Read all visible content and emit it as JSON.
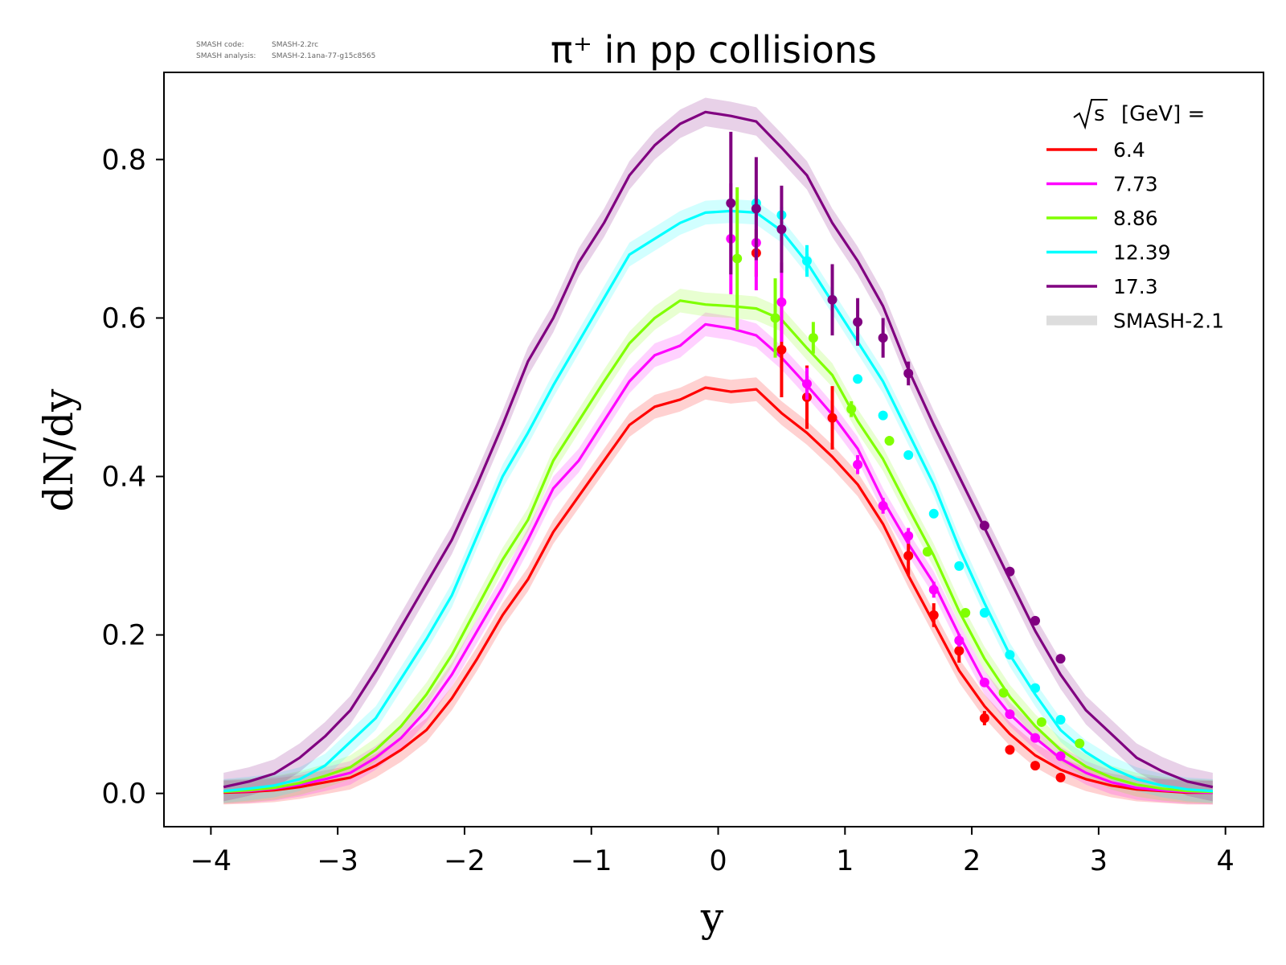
{
  "meta": {
    "code_label": "SMASH code:",
    "code_value": "SMASH-2.2rc",
    "analysis_label": "SMASH analysis:",
    "analysis_value": "SMASH-2.1ana-77-g15c8565"
  },
  "chart_data": {
    "type": "line",
    "title": "π⁺ in pp collisions",
    "xlabel": "y",
    "ylabel": "dN/dy",
    "xlim": [
      -4.37,
      4.3
    ],
    "ylim": [
      -0.042,
      0.91
    ],
    "xticks": [
      -4,
      -3,
      -2,
      -1,
      0,
      1,
      2,
      3,
      4
    ],
    "xtick_labels": [
      "−4",
      "−3",
      "−2",
      "−1",
      "0",
      "1",
      "2",
      "3",
      "4"
    ],
    "yticks": [
      0.0,
      0.2,
      0.4,
      0.6,
      0.8
    ],
    "ytick_labels": [
      "0.0",
      "0.2",
      "0.4",
      "0.6",
      "0.8"
    ],
    "grid": false,
    "legend": {
      "position": "top-right",
      "title_prefix": "√s",
      "title_suffix": "[GeV] =",
      "band_label": "SMASH-2.1",
      "band_color": "#dddddd"
    },
    "x": [
      -3.9,
      -3.7,
      -3.5,
      -3.3,
      -3.1,
      -2.9,
      -2.7,
      -2.5,
      -2.3,
      -2.1,
      -1.9,
      -1.7,
      -1.5,
      -1.3,
      -1.1,
      -0.9,
      -0.7,
      -0.5,
      -0.3,
      -0.1,
      0.1,
      0.3,
      0.5,
      0.7,
      0.9,
      1.1,
      1.3,
      1.5,
      1.7,
      1.9,
      2.1,
      2.3,
      2.5,
      2.7,
      2.9,
      3.1,
      3.3,
      3.5,
      3.7,
      3.9
    ],
    "series": [
      {
        "name": "6.4",
        "color": "#ff0000",
        "values": [
          0.001,
          0.002,
          0.004,
          0.008,
          0.014,
          0.02,
          0.035,
          0.055,
          0.08,
          0.12,
          0.17,
          0.225,
          0.27,
          0.33,
          0.375,
          0.42,
          0.465,
          0.488,
          0.497,
          0.512,
          0.507,
          0.51,
          0.48,
          0.455,
          0.425,
          0.39,
          0.34,
          0.275,
          0.215,
          0.155,
          0.11,
          0.075,
          0.048,
          0.03,
          0.018,
          0.01,
          0.005,
          0.003,
          0.001,
          0.001
        ],
        "band": 0.015,
        "points": {
          "x": [
            0.3,
            0.5,
            0.7,
            0.9,
            1.5,
            1.7,
            1.9,
            2.1,
            2.3,
            2.5,
            2.7
          ],
          "y": [
            0.682,
            0.56,
            0.5,
            0.474,
            0.3,
            0.225,
            0.18,
            0.095,
            0.055,
            0.035,
            0.02
          ],
          "err": [
            0.03,
            0.06,
            0.04,
            0.04,
            0.025,
            0.015,
            0.015,
            0.009,
            0.006,
            0.004,
            0.003
          ]
        }
      },
      {
        "name": "7.73",
        "color": "#ff00ff",
        "values": [
          0.002,
          0.003,
          0.006,
          0.011,
          0.018,
          0.026,
          0.045,
          0.07,
          0.105,
          0.15,
          0.205,
          0.26,
          0.32,
          0.385,
          0.42,
          0.47,
          0.52,
          0.553,
          0.565,
          0.592,
          0.587,
          0.578,
          0.55,
          0.515,
          0.478,
          0.435,
          0.37,
          0.315,
          0.265,
          0.2,
          0.14,
          0.1,
          0.07,
          0.044,
          0.026,
          0.014,
          0.007,
          0.004,
          0.002,
          0.001
        ],
        "band": 0.015,
        "points": {
          "x": [
            0.1,
            0.3,
            0.5,
            0.7,
            1.1,
            1.3,
            1.5,
            1.7,
            1.9,
            2.1,
            2.3,
            2.5,
            2.7
          ],
          "y": [
            0.7,
            0.695,
            0.62,
            0.517,
            0.415,
            0.363,
            0.325,
            0.257,
            0.193,
            0.14,
            0.1,
            0.07,
            0.047
          ],
          "err": [
            0.07,
            0.06,
            0.05,
            0.02,
            0.012,
            0.01,
            0.01,
            0.01,
            0.008,
            0.005,
            0.004,
            0.003,
            0.002
          ]
        }
      },
      {
        "name": "8.86",
        "color": "#80ff00",
        "values": [
          0.002,
          0.004,
          0.007,
          0.013,
          0.022,
          0.033,
          0.055,
          0.085,
          0.125,
          0.175,
          0.235,
          0.295,
          0.345,
          0.42,
          0.47,
          0.52,
          0.568,
          0.6,
          0.622,
          0.617,
          0.615,
          0.612,
          0.598,
          0.562,
          0.528,
          0.47,
          0.422,
          0.36,
          0.3,
          0.23,
          0.17,
          0.122,
          0.085,
          0.055,
          0.034,
          0.02,
          0.011,
          0.006,
          0.003,
          0.002
        ],
        "band": 0.015,
        "points": {
          "x": [
            0.15,
            0.45,
            0.75,
            1.05,
            1.35,
            1.65,
            1.95,
            2.25,
            2.55,
            2.85
          ],
          "y": [
            0.675,
            0.6,
            0.575,
            0.485,
            0.445,
            0.305,
            0.228,
            0.127,
            0.09,
            0.063
          ],
          "err": [
            0.09,
            0.05,
            0.02,
            0.01,
            0.006,
            0.005,
            0.005,
            0.004,
            0.003,
            0.002
          ]
        }
      },
      {
        "name": "12.39",
        "color": "#00ffff",
        "values": [
          0.003,
          0.006,
          0.01,
          0.018,
          0.035,
          0.065,
          0.095,
          0.145,
          0.195,
          0.25,
          0.325,
          0.4,
          0.455,
          0.515,
          0.57,
          0.625,
          0.68,
          0.7,
          0.72,
          0.733,
          0.735,
          0.733,
          0.71,
          0.67,
          0.62,
          0.57,
          0.52,
          0.455,
          0.39,
          0.31,
          0.24,
          0.175,
          0.125,
          0.08,
          0.052,
          0.032,
          0.018,
          0.01,
          0.005,
          0.003
        ],
        "band": 0.015,
        "points": {
          "x": [
            0.3,
            0.5,
            0.7,
            1.1,
            1.3,
            1.5,
            1.7,
            1.9,
            2.1,
            2.3,
            2.5,
            2.7
          ],
          "y": [
            0.745,
            0.73,
            0.672,
            0.523,
            0.477,
            0.427,
            0.353,
            0.287,
            0.228,
            0.175,
            0.133,
            0.093
          ],
          "err": [
            0.01,
            0.01,
            0.02,
            0.005,
            0.004,
            0.004,
            0.003,
            0.003,
            0.003,
            0.002,
            0.002,
            0.002
          ]
        }
      },
      {
        "name": "17.3",
        "color": "#800080",
        "values": [
          0.008,
          0.015,
          0.025,
          0.045,
          0.072,
          0.105,
          0.155,
          0.21,
          0.265,
          0.32,
          0.39,
          0.465,
          0.545,
          0.6,
          0.67,
          0.72,
          0.78,
          0.818,
          0.845,
          0.86,
          0.855,
          0.848,
          0.815,
          0.78,
          0.72,
          0.672,
          0.615,
          0.535,
          0.465,
          0.4,
          0.335,
          0.27,
          0.205,
          0.15,
          0.105,
          0.075,
          0.045,
          0.028,
          0.015,
          0.008
        ],
        "band": 0.018,
        "points": {
          "x": [
            0.1,
            0.3,
            0.5,
            0.9,
            1.1,
            1.3,
            1.5,
            2.1,
            2.3,
            2.5,
            2.7
          ],
          "y": [
            0.745,
            0.738,
            0.712,
            0.623,
            0.595,
            0.575,
            0.53,
            0.338,
            0.28,
            0.218,
            0.17
          ],
          "err": [
            0.09,
            0.065,
            0.055,
            0.045,
            0.03,
            0.025,
            0.015,
            0.006,
            0.005,
            0.004,
            0.003
          ]
        }
      }
    ]
  }
}
